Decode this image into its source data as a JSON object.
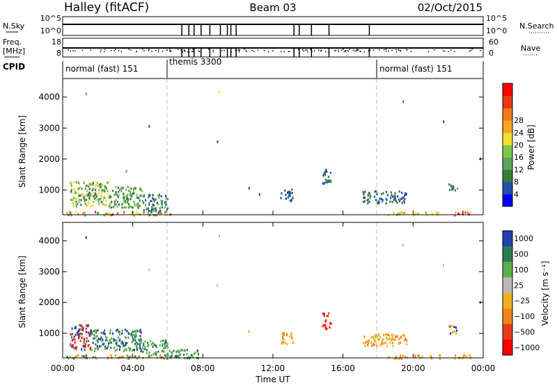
{
  "header": {
    "title": "Halley (fitACF)",
    "beam": "Beam 03",
    "date": "02/Oct/2015"
  },
  "top_panels": {
    "nsky_label": "N.Sky",
    "nsky_ticks": [
      "10^5",
      "10^0"
    ],
    "nsearch_label": "N.Search",
    "nsearch_ticks": [
      "10^5",
      "10^0"
    ],
    "freq_label_1": "Freq.",
    "freq_label_2": "[MHz]",
    "freq_ticks": [
      "18",
      "8"
    ],
    "nave_label": "Nave",
    "nave_ticks": [
      "60",
      "0"
    ],
    "cpid_label": "CPID"
  },
  "modes": [
    {
      "label": "normal (fast) 151",
      "start": 0
    },
    {
      "label": "themis 3300",
      "start": 6
    },
    {
      "label": "normal (fast) 151",
      "start": 18
    }
  ],
  "gap_times": [
    6.8,
    7.2,
    7.5,
    7.9,
    8.4,
    9.0,
    9.4,
    9.6,
    9.9,
    13.2,
    13.5,
    14.2,
    15.2,
    17.5
  ],
  "colors": {
    "power_scale": [
      "#0000ff",
      "#2050b0",
      "#3a7a3a",
      "#5ba75b",
      "#7fc64b",
      "#f0e030",
      "#f5a623",
      "#f07820",
      "#e83a1a",
      "#ff0000"
    ],
    "velocity_scale": [
      "#2040b0",
      "#2f7a55",
      "#5ab04f",
      "#b9b9b9",
      "#f0b020",
      "#f08520",
      "#e83a1a",
      "#ff0000"
    ]
  },
  "chart_data": [
    {
      "type": "heatmap",
      "name": "power",
      "ylabel": "Slant Range [km]",
      "ylim": [
        200,
        4600
      ],
      "yticks": [
        "1000",
        "2000",
        "3000",
        "4000"
      ],
      "colorbar_label": "Power [dB]",
      "colorbar_ticks": [
        "4",
        "8",
        "12",
        "16",
        "20",
        "24",
        "28"
      ],
      "clim": [
        0,
        32
      ],
      "boundaries": [
        6,
        18
      ],
      "regions": [
        {
          "t": [
            0.4,
            2.6
          ],
          "r": [
            500,
            1300
          ],
          "v": [
            6,
            20
          ]
        },
        {
          "t": [
            2.6,
            4.5
          ],
          "r": [
            450,
            1150
          ],
          "v": [
            6,
            16
          ]
        },
        {
          "t": [
            4.5,
            6.0
          ],
          "r": [
            300,
            900
          ],
          "v": [
            4,
            12
          ]
        },
        {
          "t": [
            0.2,
            6.2
          ],
          "r": [
            210,
            320
          ],
          "v": [
            10,
            30
          ]
        },
        {
          "t": [
            12.4,
            13.1
          ],
          "r": [
            650,
            1050
          ],
          "v": [
            3,
            8
          ]
        },
        {
          "t": [
            14.8,
            15.3
          ],
          "r": [
            1150,
            1700
          ],
          "v": [
            4,
            10
          ]
        },
        {
          "t": [
            17.1,
            19.6
          ],
          "r": [
            600,
            1000
          ],
          "v": [
            3,
            9
          ]
        },
        {
          "t": [
            18.5,
            21.5
          ],
          "r": [
            210,
            320
          ],
          "v": [
            14,
            22
          ]
        },
        {
          "t": [
            22.3,
            23.3
          ],
          "r": [
            210,
            330
          ],
          "v": [
            18,
            30
          ]
        },
        {
          "t": [
            22.0,
            22.5
          ],
          "r": [
            1000,
            1300
          ],
          "v": [
            5,
            10
          ]
        }
      ],
      "specks": [
        {
          "t": 1.3,
          "r": 4150,
          "v": 10
        },
        {
          "t": 8.9,
          "r": 4200,
          "v": 18
        },
        {
          "t": 4.9,
          "r": 3100,
          "v": 6
        },
        {
          "t": 19.4,
          "r": 3900,
          "v": 8
        },
        {
          "t": 21.7,
          "r": 3250,
          "v": 6
        },
        {
          "t": 8.8,
          "r": 2600,
          "v": 6
        },
        {
          "t": 23.8,
          "r": 2050,
          "v": 8
        },
        {
          "t": 3.6,
          "r": 1650,
          "v": 12
        },
        {
          "t": 10.6,
          "r": 1100,
          "v": 6
        },
        {
          "t": 11.2,
          "r": 900,
          "v": 5
        }
      ]
    },
    {
      "type": "heatmap",
      "name": "velocity",
      "ylabel": "Slant Range [km]",
      "ylim": [
        200,
        4600
      ],
      "yticks": [
        "1000",
        "2000",
        "3000",
        "4000"
      ],
      "colorbar_label": "Velocity [m s⁻¹]",
      "colorbar_ticks": [
        "1000",
        "500",
        "100",
        "25",
        "−25",
        "−100",
        "−500",
        "−1000"
      ],
      "boundaries": [
        6,
        18
      ],
      "regions": [
        {
          "t": [
            0.4,
            1.6
          ],
          "r": [
            500,
            1300
          ],
          "c": [
            0,
            1,
            6,
            7
          ]
        },
        {
          "t": [
            1.6,
            4.5
          ],
          "r": [
            450,
            1150
          ],
          "c": [
            0,
            1,
            2
          ]
        },
        {
          "t": [
            4.5,
            6.0
          ],
          "r": [
            300,
            800
          ],
          "c": [
            1,
            2
          ]
        },
        {
          "t": [
            0.2,
            6.2
          ],
          "r": [
            210,
            320
          ],
          "c": [
            4,
            5,
            1,
            2
          ]
        },
        {
          "t": [
            6.0,
            7.8
          ],
          "r": [
            220,
            500
          ],
          "c": [
            2,
            1
          ]
        },
        {
          "t": [
            12.4,
            13.1
          ],
          "r": [
            650,
            1050
          ],
          "c": [
            4,
            5
          ]
        },
        {
          "t": [
            14.8,
            15.3
          ],
          "r": [
            1150,
            1700
          ],
          "c": [
            6,
            7
          ]
        },
        {
          "t": [
            17.1,
            19.6
          ],
          "r": [
            600,
            1000
          ],
          "c": [
            4,
            5
          ]
        },
        {
          "t": [
            18.5,
            21.5
          ],
          "r": [
            210,
            320
          ],
          "c": [
            4,
            5
          ]
        },
        {
          "t": [
            22.3,
            23.3
          ],
          "r": [
            210,
            330
          ],
          "c": [
            4,
            5
          ]
        },
        {
          "t": [
            22.0,
            22.5
          ],
          "r": [
            1000,
            1300
          ],
          "c": [
            0,
            4
          ]
        }
      ],
      "specks": [
        {
          "t": 1.3,
          "r": 4150,
          "c": 0
        },
        {
          "t": 8.9,
          "r": 4200,
          "c": 3
        },
        {
          "t": 4.9,
          "r": 3100,
          "c": 3
        },
        {
          "t": 19.4,
          "r": 3900,
          "c": 3
        },
        {
          "t": 21.7,
          "r": 3250,
          "c": 3
        },
        {
          "t": 8.8,
          "r": 2600,
          "c": 3
        },
        {
          "t": 23.8,
          "r": 2050,
          "c": 1
        },
        {
          "t": 10.6,
          "r": 1100,
          "c": 4
        }
      ]
    }
  ],
  "x_axis": {
    "label": "Time UT",
    "ticks": [
      "00:00",
      "04:00",
      "08:00",
      "12:00",
      "16:00",
      "20:00",
      "00:00"
    ],
    "range_hours": [
      0,
      24
    ]
  }
}
